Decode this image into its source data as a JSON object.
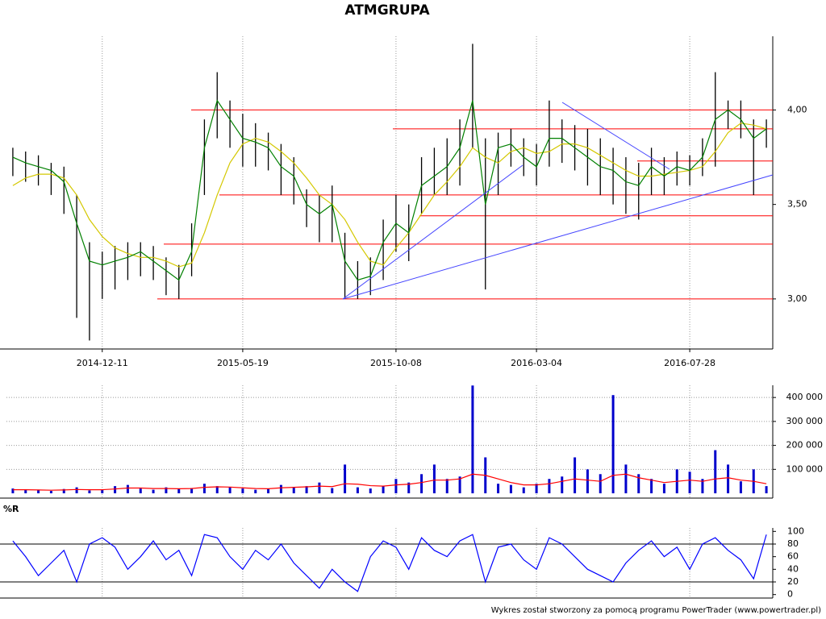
{
  "title": "ATMGRUPA",
  "footer": "Wykres został stworzony za pomocą programu PowerTrader (www.powertrader.pl)",
  "chart_data": [
    {
      "type": "price",
      "categories": [
        null,
        null,
        null,
        null,
        null,
        null,
        null,
        "2014-12-11",
        null,
        null,
        null,
        null,
        null,
        null,
        null,
        null,
        null,
        null,
        "2015-05-19",
        null,
        null,
        null,
        null,
        null,
        null,
        null,
        null,
        null,
        null,
        null,
        "2015-10-08",
        null,
        null,
        null,
        null,
        null,
        null,
        null,
        null,
        null,
        null,
        "2016-03-04",
        null,
        null,
        null,
        null,
        null,
        null,
        null,
        null,
        null,
        null,
        null,
        "2016-07-28",
        null,
        null,
        null,
        null,
        null,
        null
      ],
      "series": [
        {
          "name": "high",
          "color": "#000000",
          "values": [
            3.8,
            3.78,
            3.76,
            3.72,
            3.7,
            3.55,
            3.3,
            3.25,
            3.28,
            3.3,
            3.3,
            3.28,
            3.22,
            3.18,
            3.4,
            3.95,
            4.2,
            4.05,
            3.98,
            3.93,
            3.88,
            3.82,
            3.75,
            3.58,
            3.55,
            3.6,
            3.35,
            3.2,
            3.22,
            3.42,
            3.55,
            3.5,
            3.75,
            3.8,
            3.85,
            3.95,
            4.35,
            3.85,
            3.88,
            3.9,
            3.85,
            3.82,
            4.05,
            3.95,
            3.92,
            3.9,
            3.85,
            3.8,
            3.75,
            3.72,
            3.8,
            3.75,
            3.78,
            3.76,
            3.85,
            4.2,
            4.05,
            4.05,
            3.95,
            3.95
          ]
        },
        {
          "name": "low",
          "color": "#000000",
          "values": [
            3.65,
            3.62,
            3.6,
            3.55,
            3.45,
            2.9,
            2.78,
            3.0,
            3.05,
            3.1,
            3.12,
            3.1,
            3.02,
            3.0,
            3.12,
            3.55,
            3.85,
            3.8,
            3.7,
            3.7,
            3.68,
            3.55,
            3.5,
            3.38,
            3.3,
            3.3,
            3.0,
            3.0,
            3.02,
            3.1,
            3.25,
            3.2,
            3.45,
            3.55,
            3.55,
            3.6,
            3.8,
            3.05,
            3.55,
            3.7,
            3.65,
            3.6,
            3.7,
            3.72,
            3.68,
            3.6,
            3.55,
            3.5,
            3.45,
            3.42,
            3.55,
            3.55,
            3.6,
            3.6,
            3.65,
            3.7,
            3.9,
            3.85,
            3.55,
            3.8
          ]
        },
        {
          "name": "close",
          "color": "#008000",
          "values": [
            3.75,
            3.72,
            3.7,
            3.68,
            3.62,
            3.4,
            3.2,
            3.18,
            3.2,
            3.22,
            3.25,
            3.2,
            3.15,
            3.1,
            3.25,
            3.8,
            4.05,
            3.95,
            3.85,
            3.83,
            3.8,
            3.7,
            3.65,
            3.5,
            3.45,
            3.5,
            3.2,
            3.1,
            3.12,
            3.3,
            3.4,
            3.35,
            3.6,
            3.65,
            3.7,
            3.8,
            4.05,
            3.5,
            3.8,
            3.82,
            3.75,
            3.7,
            3.85,
            3.85,
            3.8,
            3.75,
            3.7,
            3.68,
            3.62,
            3.6,
            3.7,
            3.65,
            3.7,
            3.68,
            3.75,
            3.95,
            4.0,
            3.95,
            3.85,
            3.9
          ]
        },
        {
          "name": "ma",
          "color": "#d4c800",
          "values": [
            3.6,
            3.64,
            3.66,
            3.66,
            3.64,
            3.55,
            3.42,
            3.33,
            3.27,
            3.24,
            3.22,
            3.22,
            3.2,
            3.17,
            3.19,
            3.35,
            3.55,
            3.72,
            3.82,
            3.85,
            3.83,
            3.78,
            3.72,
            3.64,
            3.55,
            3.5,
            3.42,
            3.3,
            3.2,
            3.18,
            3.27,
            3.35,
            3.45,
            3.55,
            3.62,
            3.7,
            3.8,
            3.75,
            3.72,
            3.78,
            3.8,
            3.77,
            3.78,
            3.82,
            3.82,
            3.8,
            3.76,
            3.72,
            3.68,
            3.65,
            3.65,
            3.66,
            3.67,
            3.68,
            3.7,
            3.78,
            3.88,
            3.93,
            3.92,
            3.9
          ]
        }
      ],
      "levels": [
        4.0,
        3.9,
        3.73,
        3.55,
        3.44,
        3.29,
        3.0
      ],
      "level_color": "#ff0000",
      "ylim": [
        2.735,
        4.39
      ],
      "yticks": [
        {
          "value": 3.0,
          "label": "3,00"
        },
        {
          "value": 3.5,
          "label": "3,50"
        },
        {
          "value": 4.0,
          "label": "4,00"
        }
      ]
    },
    {
      "type": "volume",
      "series": [
        {
          "name": "volume",
          "color": "#0000cc",
          "values": [
            20000,
            15000,
            12000,
            10000,
            18000,
            25000,
            12000,
            15000,
            30000,
            35000,
            20000,
            15000,
            25000,
            18000,
            22000,
            40000,
            30000,
            25000,
            20000,
            15000,
            18000,
            35000,
            25000,
            30000,
            45000,
            22000,
            120000,
            25000,
            20000,
            30000,
            60000,
            45000,
            80000,
            120000,
            60000,
            70000,
            450000,
            150000,
            40000,
            35000,
            25000,
            40000,
            60000,
            70000,
            150000,
            100000,
            80000,
            410000,
            120000,
            80000,
            60000,
            40000,
            100000,
            90000,
            60000,
            180000,
            120000,
            50000,
            100000,
            30000
          ]
        },
        {
          "name": "volume-ma",
          "color": "#ff0000",
          "values": [
            15000,
            15000,
            14000,
            13000,
            14000,
            16000,
            15000,
            15000,
            18000,
            22000,
            22000,
            20000,
            20000,
            19000,
            20000,
            25000,
            27000,
            26000,
            23000,
            20000,
            19000,
            23000,
            25000,
            27000,
            30000,
            28000,
            40000,
            38000,
            32000,
            30000,
            35000,
            38000,
            45000,
            55000,
            55000,
            60000,
            80000,
            75000,
            60000,
            45000,
            35000,
            35000,
            40000,
            50000,
            60000,
            55000,
            50000,
            75000,
            80000,
            65000,
            55000,
            45000,
            50000,
            55000,
            50000,
            60000,
            65000,
            55000,
            50000,
            40000
          ]
        }
      ],
      "ylim": [
        -20000,
        451000
      ],
      "yticks": [
        {
          "value": 100000,
          "label": "100 000"
        },
        {
          "value": 200000,
          "label": "200 000"
        },
        {
          "value": 300000,
          "label": "300 000"
        },
        {
          "value": 400000,
          "label": "400 000"
        }
      ]
    },
    {
      "type": "oscillator",
      "title": "%R",
      "color": "#0000ff",
      "values": [
        85,
        60,
        30,
        50,
        70,
        20,
        80,
        90,
        75,
        40,
        60,
        85,
        55,
        70,
        30,
        95,
        90,
        60,
        40,
        70,
        55,
        80,
        50,
        30,
        10,
        40,
        20,
        5,
        60,
        85,
        75,
        40,
        90,
        70,
        60,
        85,
        95,
        20,
        75,
        80,
        55,
        40,
        90,
        80,
        60,
        40,
        30,
        20,
        50,
        70,
        85,
        60,
        75,
        40,
        80,
        90,
        70,
        55,
        25,
        95
      ],
      "levels": [
        20,
        80
      ],
      "ylim": [
        -5.5,
        105.5
      ],
      "yticks": [
        0,
        20,
        40,
        60,
        80,
        100
      ]
    }
  ]
}
